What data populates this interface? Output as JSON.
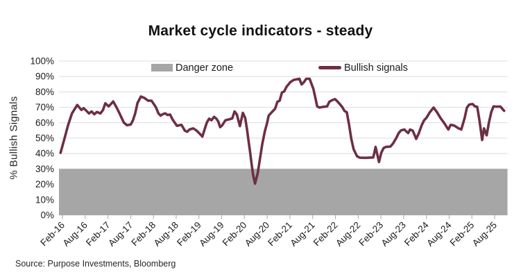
{
  "title": "Market cycle indicators - steady",
  "source": "Source: Purpose Investments, Bloomberg",
  "legend": [
    {
      "label": "Danger zone",
      "swatch": "gray-area",
      "color": "#a6a6a6"
    },
    {
      "label": "Bullish signals",
      "swatch": "maroon-line",
      "color": "#6d2e46"
    }
  ],
  "colors": {
    "line": "#6d2e46",
    "danger_zone": "#a6a6a6",
    "gridline": "#dcdcdc",
    "tick_mark": "#a6a6a6",
    "text": "#1a1a1a"
  },
  "chart_data": {
    "type": "line",
    "title": "Market cycle indicators - steady",
    "xlabel": "",
    "ylabel": "% Bullish Signals",
    "ylim": [
      0,
      100
    ],
    "grid": true,
    "legend_position": "top-inside",
    "y_tick_labels": [
      "0%",
      "10%",
      "20%",
      "30%",
      "40%",
      "50%",
      "60%",
      "70%",
      "80%",
      "90%",
      "100%"
    ],
    "x_tick_labels": [
      "Feb-16",
      "Aug-16",
      "Feb-17",
      "Aug-17",
      "Feb-18",
      "Aug-18",
      "Feb-19",
      "Aug-19",
      "Feb-20",
      "Aug-20",
      "Feb-21",
      "Aug-21",
      "Feb-22",
      "Aug-22",
      "Feb-23",
      "Aug-23",
      "Feb-24",
      "Aug-24",
      "Feb-25",
      "Aug-25"
    ],
    "x_unit": "months after Feb-2016 (fractional = intra-month reading)",
    "danger_zone": {
      "label": "Danger zone",
      "range": [
        0,
        30
      ],
      "color": "#a6a6a6"
    },
    "series": [
      {
        "name": "Bullish signals",
        "color": "#6d2e46",
        "points": [
          [
            -0.5,
            40.5
          ],
          [
            0.6,
            50.3
          ],
          [
            1.5,
            58.5
          ],
          [
            2.5,
            66
          ],
          [
            3.9,
            71.5
          ],
          [
            5,
            68.3
          ],
          [
            5.6,
            69.4
          ],
          [
            6.1,
            68.3
          ],
          [
            7,
            66
          ],
          [
            7.7,
            67.3
          ],
          [
            8.4,
            65.5
          ],
          [
            9.1,
            67
          ],
          [
            10,
            66
          ],
          [
            10.7,
            68.3
          ],
          [
            11.3,
            72.6
          ],
          [
            12.2,
            70.6
          ],
          [
            13.4,
            73.8
          ],
          [
            14.3,
            69.8
          ],
          [
            15,
            66.3
          ],
          [
            15.6,
            63.1
          ],
          [
            16.2,
            60.1
          ],
          [
            17,
            58.4
          ],
          [
            18,
            58.8
          ],
          [
            18.6,
            61.5
          ],
          [
            19.2,
            66.1
          ],
          [
            19.8,
            72.8
          ],
          [
            20.7,
            77
          ],
          [
            21.6,
            76.1
          ],
          [
            22.6,
            74.3
          ],
          [
            23.5,
            74.3
          ],
          [
            24.1,
            72.1
          ],
          [
            24.7,
            69.8
          ],
          [
            25.3,
            66.1
          ],
          [
            25.9,
            64.6
          ],
          [
            26.5,
            65.6
          ],
          [
            27.1,
            66.1
          ],
          [
            27.7,
            65
          ],
          [
            28.4,
            65.3
          ],
          [
            29,
            62.3
          ],
          [
            29.6,
            60.1
          ],
          [
            30.2,
            58
          ],
          [
            31.4,
            58.6
          ],
          [
            32.3,
            54.8
          ],
          [
            32.9,
            54.1
          ],
          [
            33.5,
            55.6
          ],
          [
            34.5,
            56.3
          ],
          [
            35.4,
            54.8
          ],
          [
            36.3,
            52.6
          ],
          [
            36.9,
            51
          ],
          [
            37.6,
            56.5
          ],
          [
            38.1,
            60.2
          ],
          [
            38.7,
            62.6
          ],
          [
            39.3,
            61.6
          ],
          [
            40,
            63.8
          ],
          [
            40.6,
            62.6
          ],
          [
            41.1,
            60.8
          ],
          [
            41.6,
            57.1
          ],
          [
            42.1,
            58.2
          ],
          [
            43,
            61.6
          ],
          [
            44,
            62.2
          ],
          [
            44.8,
            62.8
          ],
          [
            45.4,
            67.3
          ],
          [
            46,
            65.3
          ],
          [
            46.8,
            57.8
          ],
          [
            47.6,
            66.4
          ],
          [
            48.2,
            63.1
          ],
          [
            48.7,
            55.6
          ],
          [
            49.1,
            48
          ],
          [
            49.5,
            41
          ],
          [
            49.9,
            33
          ],
          [
            50.3,
            26
          ],
          [
            50.8,
            20.5
          ],
          [
            51.5,
            27
          ],
          [
            52.1,
            36.5
          ],
          [
            52.7,
            46
          ],
          [
            53.4,
            54.5
          ],
          [
            54,
            60
          ],
          [
            54.4,
            64.6
          ],
          [
            55.2,
            66.8
          ],
          [
            56.1,
            69.1
          ],
          [
            56.7,
            73.6
          ],
          [
            57.3,
            74.3
          ],
          [
            57.9,
            79.6
          ],
          [
            58.5,
            80.3
          ],
          [
            59.1,
            83.3
          ],
          [
            60.1,
            86.3
          ],
          [
            61,
            87.8
          ],
          [
            62.5,
            88.5
          ],
          [
            63.1,
            84.8
          ],
          [
            63.7,
            86.3
          ],
          [
            64.3,
            88.5
          ],
          [
            65.2,
            88.5
          ],
          [
            66.2,
            81.8
          ],
          [
            66.8,
            75.1
          ],
          [
            67.2,
            70.6
          ],
          [
            67.8,
            69.8
          ],
          [
            68.8,
            70.3
          ],
          [
            69.8,
            70.6
          ],
          [
            70.4,
            73.6
          ],
          [
            71.3,
            74.8
          ],
          [
            71.9,
            75.3
          ],
          [
            72.6,
            73.6
          ],
          [
            73.2,
            72
          ],
          [
            73.8,
            70.2
          ],
          [
            74.4,
            67.6
          ],
          [
            75,
            66.8
          ],
          [
            75.6,
            58.6
          ],
          [
            76.2,
            49.5
          ],
          [
            76.8,
            42.8
          ],
          [
            77.7,
            38.3
          ],
          [
            78.4,
            37.3
          ],
          [
            80,
            37.2
          ],
          [
            82,
            37.5
          ],
          [
            82.6,
            44.3
          ],
          [
            83.5,
            34.5
          ],
          [
            84.1,
            40.5
          ],
          [
            84.7,
            43.5
          ],
          [
            85.3,
            44.3
          ],
          [
            86.5,
            44.5
          ],
          [
            87.2,
            46.5
          ],
          [
            88.1,
            50.3
          ],
          [
            88.7,
            53.3
          ],
          [
            89.3,
            55
          ],
          [
            90.2,
            55.6
          ],
          [
            90.8,
            54.1
          ],
          [
            91.2,
            53.3
          ],
          [
            91.7,
            55.6
          ],
          [
            92.4,
            54.8
          ],
          [
            93.3,
            49.5
          ],
          [
            93.9,
            52.6
          ],
          [
            94.8,
            58.6
          ],
          [
            95.4,
            61.6
          ],
          [
            96,
            63.1
          ],
          [
            96.9,
            66.8
          ],
          [
            97.9,
            69.8
          ],
          [
            98.8,
            66.8
          ],
          [
            99.7,
            63.1
          ],
          [
            100.6,
            60.1
          ],
          [
            101.2,
            57.8
          ],
          [
            101.8,
            55.6
          ],
          [
            102.4,
            58.6
          ],
          [
            103.3,
            58.2
          ],
          [
            104.5,
            56.3
          ],
          [
            105.2,
            55.6
          ],
          [
            106.1,
            63.1
          ],
          [
            106.7,
            69.8
          ],
          [
            107.3,
            71.8
          ],
          [
            108.2,
            72.1
          ],
          [
            108.8,
            70.6
          ],
          [
            109.4,
            70.3
          ],
          [
            110,
            61.6
          ],
          [
            110.7,
            48.8
          ],
          [
            111.2,
            56.3
          ],
          [
            111.9,
            51.8
          ],
          [
            112.5,
            60.1
          ],
          [
            113.1,
            66.8
          ],
          [
            113.7,
            70.6
          ],
          [
            114.5,
            70.4
          ],
          [
            115.5,
            70.5
          ],
          [
            116.5,
            67.7
          ]
        ]
      }
    ]
  }
}
